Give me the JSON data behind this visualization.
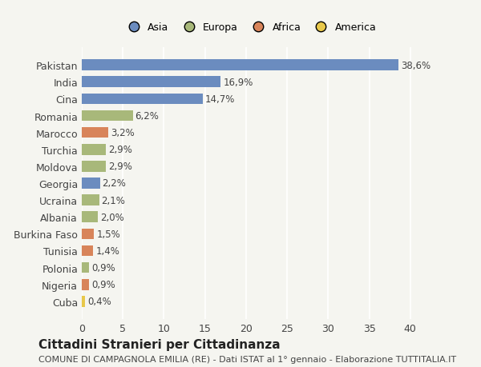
{
  "countries": [
    "Pakistan",
    "India",
    "Cina",
    "Romania",
    "Marocco",
    "Turchia",
    "Moldova",
    "Georgia",
    "Ucraina",
    "Albania",
    "Burkina Faso",
    "Tunisia",
    "Polonia",
    "Nigeria",
    "Cuba"
  ],
  "values": [
    38.6,
    16.9,
    14.7,
    6.2,
    3.2,
    2.9,
    2.9,
    2.2,
    2.1,
    2.0,
    1.5,
    1.4,
    0.9,
    0.9,
    0.4
  ],
  "labels": [
    "38,6%",
    "16,9%",
    "14,7%",
    "6,2%",
    "3,2%",
    "2,9%",
    "2,9%",
    "2,2%",
    "2,1%",
    "2,0%",
    "1,5%",
    "1,4%",
    "0,9%",
    "0,9%",
    "0,4%"
  ],
  "colors": [
    "#6b8cbf",
    "#6b8cbf",
    "#6b8cbf",
    "#a8b87a",
    "#d8845a",
    "#a8b87a",
    "#a8b87a",
    "#6b8cbf",
    "#a8b87a",
    "#a8b87a",
    "#d8845a",
    "#d8845a",
    "#a8b87a",
    "#d8845a",
    "#e8c84a"
  ],
  "legend_labels": [
    "Asia",
    "Europa",
    "Africa",
    "America"
  ],
  "legend_colors": [
    "#6b8cbf",
    "#a8b87a",
    "#d8845a",
    "#e8c84a"
  ],
  "xlim": [
    0,
    41
  ],
  "xticks": [
    0,
    5,
    10,
    15,
    20,
    25,
    30,
    35,
    40
  ],
  "title": "Cittadini Stranieri per Cittadinanza",
  "subtitle": "COMUNE DI CAMPAGNOLA EMILIA (RE) - Dati ISTAT al 1° gennaio - Elaborazione TUTTITALIA.IT",
  "bg_color": "#f5f5f0",
  "grid_color": "#ffffff",
  "bar_height": 0.65,
  "label_fontsize": 8.5,
  "title_fontsize": 11,
  "subtitle_fontsize": 8
}
